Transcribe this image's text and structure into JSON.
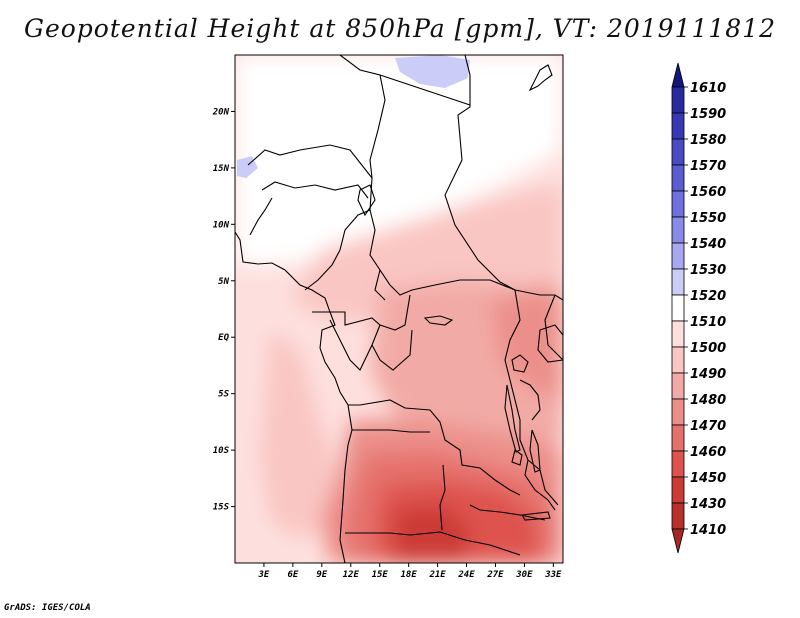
{
  "title": "Geopotential Height at 850hPa [gpm], VT: 2019111812",
  "credit": "GrADS: IGES/COLA",
  "map": {
    "lon_range": [
      0,
      34
    ],
    "lat_range": [
      -20,
      25
    ],
    "x_ticks": [
      "3E",
      "6E",
      "9E",
      "12E",
      "15E",
      "18E",
      "21E",
      "24E",
      "27E",
      "30E",
      "33E"
    ],
    "x_tick_values": [
      3,
      6,
      9,
      12,
      15,
      18,
      21,
      24,
      27,
      30,
      33
    ],
    "y_ticks": [
      "20N",
      "15N",
      "10N",
      "5N",
      "EQ",
      "5S",
      "10S",
      "15S"
    ],
    "y_tick_values": [
      20,
      15,
      10,
      5,
      0,
      -5,
      -10,
      -15
    ]
  },
  "colorbar": {
    "labels": [
      "1610",
      "1590",
      "1580",
      "1570",
      "1560",
      "1550",
      "1540",
      "1530",
      "1520",
      "1510",
      "1500",
      "1490",
      "1480",
      "1470",
      "1460",
      "1450",
      "1430",
      "1410"
    ],
    "colors": {
      "1610": "#1c1c8a",
      "1590": "#2a2aa0",
      "1580": "#3838b4",
      "1570": "#4a4ac4",
      "1560": "#5c5cd2",
      "1550": "#7070de",
      "1540": "#8a8ae8",
      "1530": "#a8a8f0",
      "1520": "#ccccf8",
      "1510": "#ffffff",
      "1500": "#fde0de",
      "1490": "#f9c6c3",
      "1480": "#f2aaa6",
      "1470": "#ec8f8a",
      "1460": "#e5716c",
      "1450": "#de534e",
      "1430": "#cc3b36",
      "1410": "#b8302c",
      "bottom": "#a52824",
      "top": "#151580"
    }
  },
  "colors": {
    "border": "#000000",
    "low_height_blue": "#ccccf8"
  }
}
